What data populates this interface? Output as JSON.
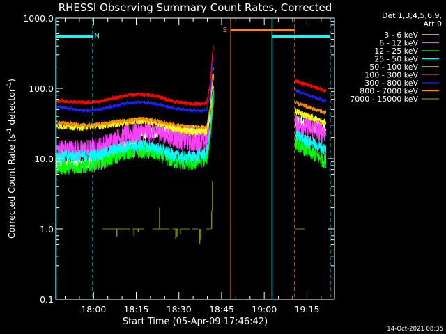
{
  "chart_data": {
    "type": "line",
    "title": "RHESSI Observing Summary Count Rates, Corrected",
    "xlabel": "Start Time (05-Apr-09 17:46:42)",
    "ylabel_main": "Corrected Count Rate (s",
    "ylabel_sup1": "-1",
    "ylabel_mid": " detector",
    "ylabel_sup2": "-1",
    "ylabel_end": ")",
    "y_scale": "log",
    "ylim": [
      0.1,
      1000
    ],
    "xlim_minutes": [
      0,
      98
    ],
    "y_ticks": [
      {
        "v": 1000,
        "label": "1000.0"
      },
      {
        "v": 100,
        "label": "100.0"
      },
      {
        "v": 10,
        "label": "10.0"
      },
      {
        "v": 1,
        "label": "1.0"
      },
      {
        "v": 0.1,
        "label": "0.1"
      }
    ],
    "x_ticks": [
      {
        "m": 13.3,
        "label": "18:00"
      },
      {
        "m": 28.3,
        "label": "18:15"
      },
      {
        "m": 43.3,
        "label": "18:30"
      },
      {
        "m": 58.3,
        "label": "18:45"
      },
      {
        "m": 73.3,
        "label": "19:00"
      },
      {
        "m": 88.3,
        "label": "19:15"
      }
    ],
    "legend_header": [
      "Det 1,3,4,5,6,9,",
      "Att 0"
    ],
    "legend_position": "top-right",
    "timestamp": "14-Oct-2021 08:35",
    "series": [
      {
        "name": "3 - 6 keV",
        "color": "#ffffff",
        "levels": [
          [
            0,
            8.5
          ],
          [
            10,
            8.5
          ],
          [
            15,
            9.5
          ],
          [
            25,
            15
          ],
          [
            30,
            22
          ],
          [
            35,
            24
          ],
          [
            42,
            25
          ],
          [
            48,
            25
          ],
          [
            53,
            25
          ],
          [
            55,
            40
          ],
          [
            84,
            35
          ],
          [
            94,
            26
          ]
        ]
      },
      {
        "name": "6 - 12 keV",
        "color": "#ff40ff",
        "levels": [
          [
            0,
            13.5
          ],
          [
            10,
            13
          ],
          [
            15,
            14
          ],
          [
            25,
            22
          ],
          [
            30,
            24
          ],
          [
            35,
            25
          ],
          [
            42,
            20
          ],
          [
            48,
            17
          ],
          [
            53,
            18
          ],
          [
            55,
            30
          ],
          [
            84,
            32
          ],
          [
            94,
            24
          ]
        ]
      },
      {
        "name": "12 - 25 keV",
        "color": "#00ff00",
        "levels": [
          [
            0,
            7.5
          ],
          [
            10,
            7.8
          ],
          [
            15,
            8.5
          ],
          [
            25,
            12.5
          ],
          [
            30,
            13
          ],
          [
            35,
            12
          ],
          [
            42,
            9
          ],
          [
            48,
            8.5
          ],
          [
            53,
            10
          ],
          [
            55,
            30
          ],
          [
            84,
            17
          ],
          [
            94,
            9.5
          ]
        ]
      },
      {
        "name": "25 - 50 keV",
        "color": "#00ffff",
        "levels": [
          [
            0,
            11
          ],
          [
            10,
            11
          ],
          [
            15,
            11.5
          ],
          [
            25,
            15
          ],
          [
            30,
            15.5
          ],
          [
            35,
            14.5
          ],
          [
            42,
            11
          ],
          [
            48,
            10.5
          ],
          [
            53,
            12
          ],
          [
            55,
            40
          ],
          [
            84,
            22
          ],
          [
            94,
            14
          ]
        ]
      },
      {
        "name": "50 - 100 keV",
        "color": "#ffff00",
        "levels": [
          [
            0,
            29
          ],
          [
            10,
            28
          ],
          [
            15,
            29
          ],
          [
            25,
            33
          ],
          [
            30,
            35
          ],
          [
            35,
            33
          ],
          [
            42,
            27
          ],
          [
            48,
            24
          ],
          [
            53,
            25
          ],
          [
            55,
            60
          ],
          [
            84,
            48
          ],
          [
            94,
            33
          ]
        ]
      },
      {
        "name": "100 - 300 keV",
        "color": "#ff0000",
        "levels": [
          [
            0,
            67
          ],
          [
            10,
            63
          ],
          [
            15,
            65
          ],
          [
            25,
            80
          ],
          [
            30,
            83
          ],
          [
            35,
            78
          ],
          [
            42,
            65
          ],
          [
            48,
            60
          ],
          [
            53,
            62
          ],
          [
            55,
            160
          ],
          [
            84,
            130
          ],
          [
            94,
            95
          ]
        ]
      },
      {
        "name": "300 - 800 keV",
        "color": "#2020ff",
        "levels": [
          [
            0,
            55
          ],
          [
            10,
            48
          ],
          [
            15,
            50
          ],
          [
            25,
            62
          ],
          [
            30,
            64
          ],
          [
            35,
            60
          ],
          [
            42,
            52
          ],
          [
            48,
            48
          ],
          [
            53,
            48
          ],
          [
            55,
            110
          ],
          [
            84,
            95
          ],
          [
            94,
            68
          ]
        ]
      },
      {
        "name": "800 - 7000 keV",
        "color": "#ff8c00",
        "levels": [
          [
            0,
            33
          ],
          [
            10,
            30
          ],
          [
            15,
            31
          ],
          [
            25,
            35
          ],
          [
            30,
            37
          ],
          [
            35,
            35
          ],
          [
            42,
            30
          ],
          [
            48,
            28
          ],
          [
            53,
            28
          ],
          [
            55,
            80
          ],
          [
            84,
            63
          ],
          [
            94,
            46
          ]
        ]
      },
      {
        "name": "7000 - 15000 keV",
        "color": "#8b8b00",
        "levels": []
      }
    ],
    "flag_bars": [
      {
        "label": "N",
        "color": "#00ffff",
        "x0": 0,
        "x1": 13,
        "y": 550,
        "label_at": 14.5
      },
      {
        "label": "",
        "color": "#00ffff",
        "x0": 76,
        "x1": 96.5,
        "y": 550,
        "label_at": null
      },
      {
        "label": "S",
        "color": "#ff8c00",
        "x0": 61.5,
        "x1": 84,
        "y": 680,
        "label_at": 59.5
      }
    ]
  }
}
